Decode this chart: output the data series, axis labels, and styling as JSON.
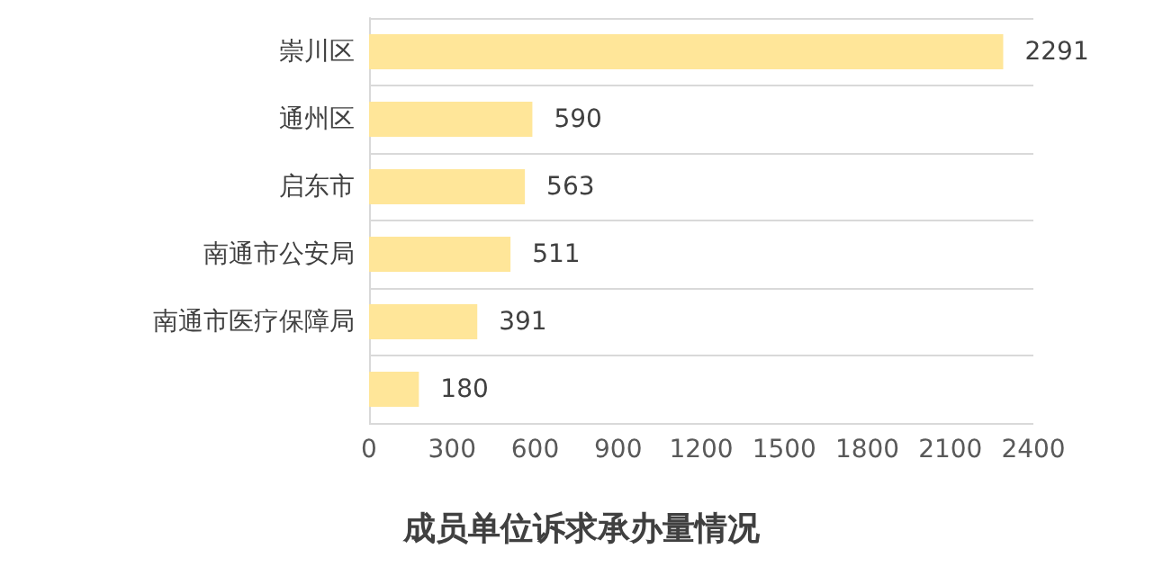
{
  "chart_data": {
    "type": "bar",
    "orientation": "horizontal",
    "title": "成员单位诉求承办量情况",
    "categories": [
      "崇川区",
      "通州区",
      "启东市",
      "南通市公安局",
      "南通市医疗保障局",
      null
    ],
    "values": [
      2291,
      590,
      563,
      511,
      391,
      180
    ],
    "color": "#ffe699",
    "xlim": [
      0,
      2400
    ],
    "xticks": [
      0,
      300,
      600,
      900,
      1200,
      1500,
      1800,
      2100,
      2400
    ],
    "grid": "y",
    "data_labels": true
  }
}
